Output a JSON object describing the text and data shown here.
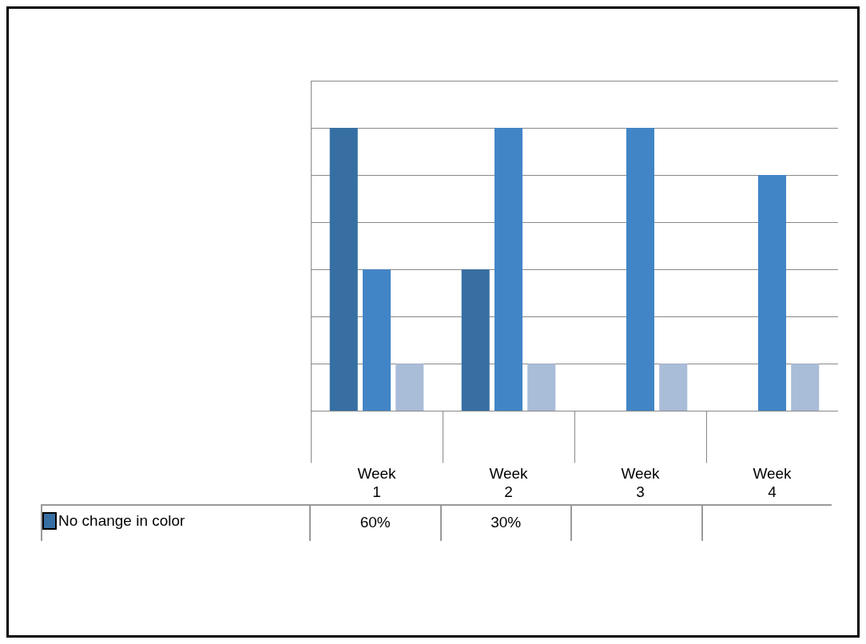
{
  "chart_data": {
    "type": "bar",
    "categories": [
      "Week 1",
      "Week 2",
      "Week 3",
      "Week 4"
    ],
    "series": [
      {
        "name": "No change in color",
        "color": "#376fa3",
        "values": [
          60,
          30,
          null,
          null
        ],
        "value_labels": [
          "60%",
          "30%",
          null,
          null
        ]
      },
      {
        "color": "#4285c6",
        "values": [
          30,
          60,
          60,
          50
        ]
      },
      {
        "color": "#a9bcd8",
        "values": [
          10,
          10,
          10,
          10
        ]
      }
    ],
    "ylim": [
      0,
      70
    ],
    "tick_labels": "x",
    "grid": "y",
    "legend": "bottom left"
  }
}
